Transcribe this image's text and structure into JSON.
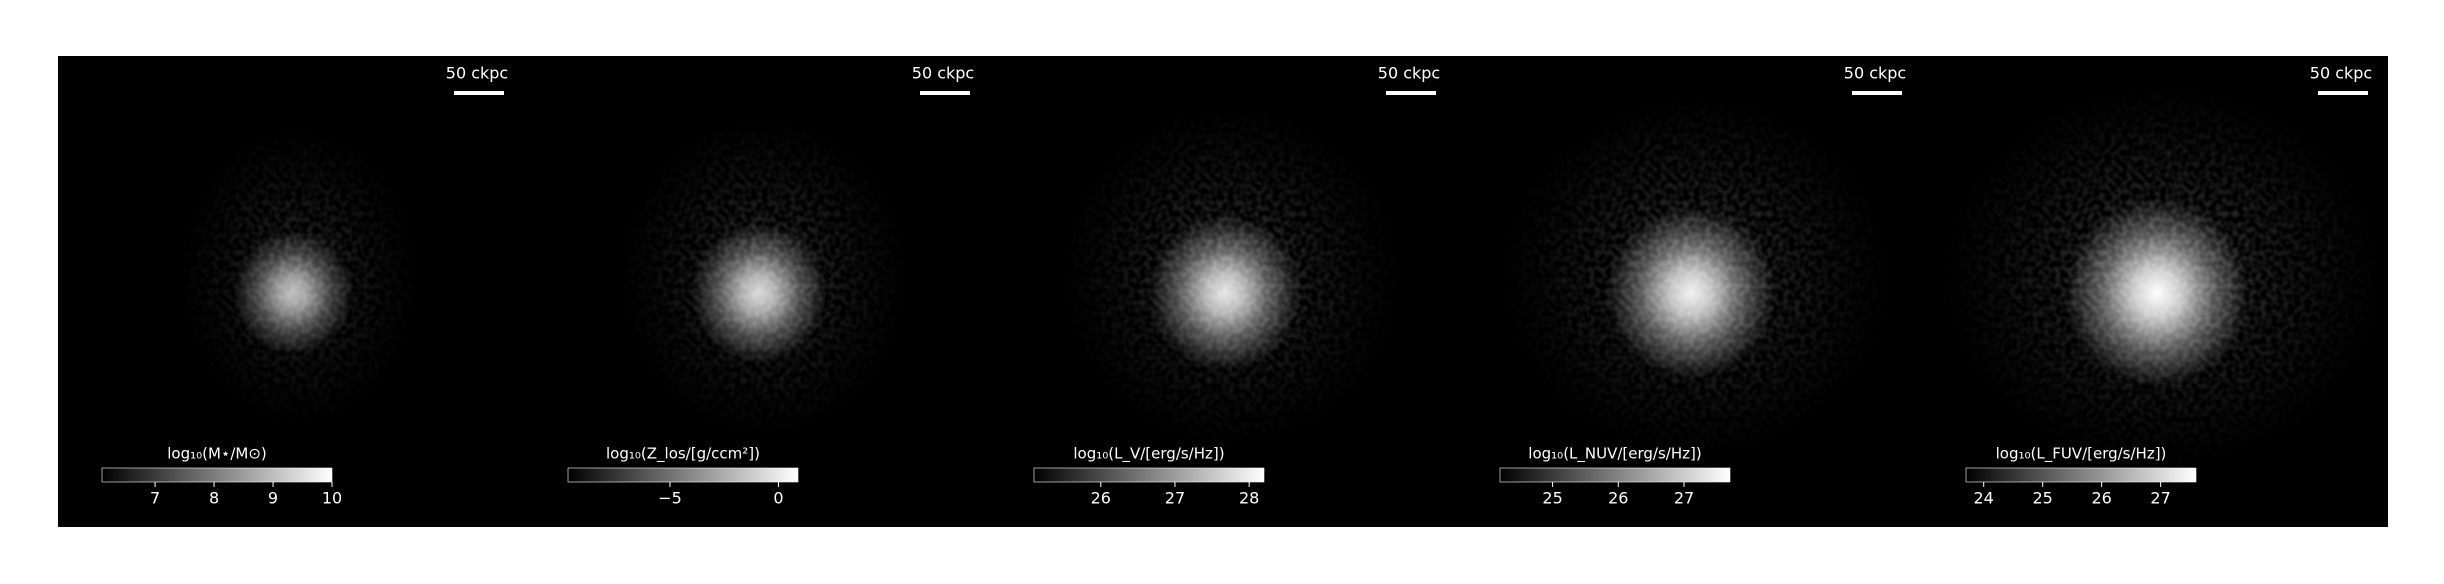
{
  "panels": [
    {
      "scalebar": "50 ckpc",
      "colorbar": {
        "label": "log₁₀(M⋆/M⊙)",
        "lim": [
          6.1,
          10
        ],
        "ticks": [
          7,
          8,
          9,
          10
        ]
      }
    },
    {
      "scalebar": "50 ckpc",
      "colorbar": {
        "label": "log₁₀(Z_los/[g/ccm²])",
        "lim": [
          -9.7,
          0.9
        ],
        "ticks": [
          {
            "value": -5,
            "label": "−5"
          },
          0
        ]
      }
    },
    {
      "scalebar": "50 ckpc",
      "colorbar": {
        "label": "log₁₀(L_V/[erg/s/Hz])",
        "lim": [
          25.1,
          28.2
        ],
        "ticks": [
          26,
          27,
          28
        ]
      }
    },
    {
      "scalebar": "50 ckpc",
      "colorbar": {
        "label": "log₁₀(L_NUV/[erg/s/Hz])",
        "lim": [
          24.2,
          27.7
        ],
        "ticks": [
          25,
          26,
          27
        ]
      }
    },
    {
      "scalebar": "50 ckpc",
      "colorbar": {
        "label": "log₁₀(L_FUV/[erg/s/Hz])",
        "lim": [
          23.7,
          27.6
        ],
        "ticks": [
          24,
          25,
          26,
          27
        ]
      }
    }
  ]
}
